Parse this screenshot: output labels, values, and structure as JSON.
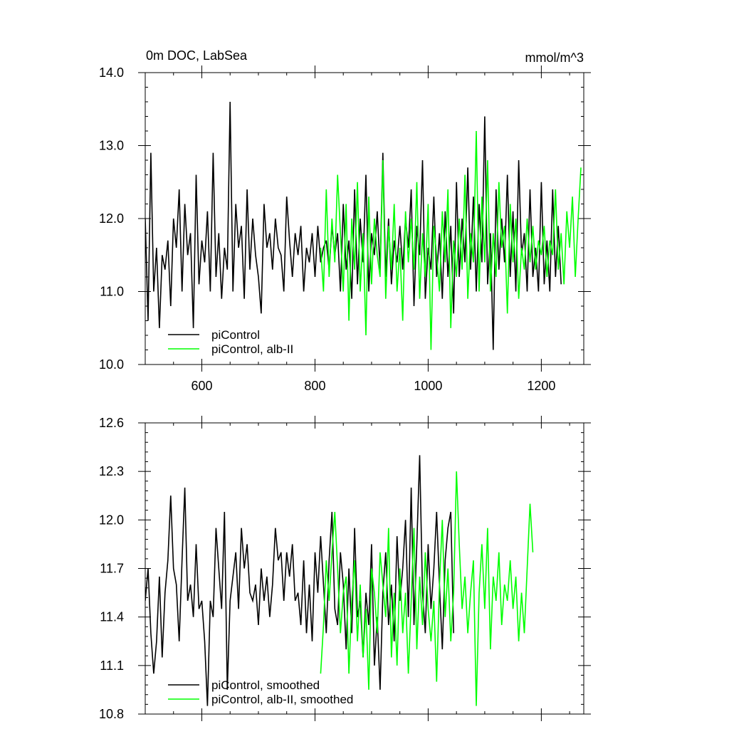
{
  "chart_data": [
    {
      "type": "line",
      "title": "0m DOC, LabSea",
      "units": "mmol/m^3",
      "xlim": [
        500,
        1275
      ],
      "ylim": [
        10.0,
        14.0
      ],
      "x_ticks": [
        600,
        800,
        1000,
        1200
      ],
      "x_tick_labels": [
        "600",
        "800",
        "1000",
        "1200"
      ],
      "y_ticks": [
        10.0,
        11.0,
        12.0,
        13.0,
        14.0
      ],
      "y_tick_labels": [
        "10.0",
        "11.0",
        "12.0",
        "13.0",
        "14.0"
      ],
      "grid": false,
      "legend_position": "bottom-left",
      "series": [
        {
          "name": "piControl",
          "color": "#000000",
          "x_start": 500,
          "x_step": 5,
          "values": [
            12.0,
            10.6,
            12.9,
            11.0,
            11.6,
            10.5,
            11.5,
            11.3,
            11.7,
            10.8,
            12.0,
            11.6,
            12.4,
            11.0,
            12.2,
            11.5,
            11.8,
            10.5,
            12.6,
            11.1,
            11.7,
            11.4,
            12.1,
            11.0,
            12.9,
            11.2,
            11.8,
            10.9,
            11.6,
            11.3,
            13.6,
            11.0,
            12.2,
            11.6,
            11.9,
            10.9,
            12.4,
            11.3,
            12.0,
            11.5,
            11.2,
            10.7,
            12.2,
            11.6,
            11.8,
            11.3,
            12.0,
            11.6,
            11.5,
            11.0,
            12.3,
            11.7,
            11.2,
            11.8,
            11.5,
            11.9,
            11.0,
            11.6,
            11.4,
            11.8,
            11.2,
            11.9,
            11.4,
            11.6,
            11.7,
            11.3,
            11.9,
            11.5,
            11.8,
            11.0,
            12.2,
            11.3,
            11.7,
            10.9,
            12.4,
            11.1,
            12.0,
            11.4,
            12.6,
            11.0,
            11.8,
            11.5,
            12.1,
            11.3,
            12.9,
            11.2,
            12.0,
            11.1,
            11.7,
            11.4,
            11.9,
            11.3,
            12.0,
            11.6,
            12.4,
            10.8,
            11.9,
            11.5,
            12.8,
            10.9,
            11.6,
            11.3,
            12.3,
            11.2,
            11.8,
            10.9,
            12.1,
            11.2,
            11.9,
            10.7,
            12.5,
            11.2,
            12.0,
            11.4,
            12.7,
            11.3,
            12.3,
            11.0,
            12.2,
            11.4,
            13.4,
            11.1,
            11.8,
            10.2,
            12.4,
            11.3,
            12.0,
            11.4,
            12.6,
            11.2,
            12.1,
            11.0,
            12.8,
            11.5,
            11.8,
            11.0,
            12.4,
            11.2,
            11.6,
            11.0,
            12.5,
            11.1,
            11.7,
            11.0,
            12.4,
            11.2,
            11.9,
            11.1
          ]
        },
        {
          "name": "piControl, alb-II",
          "color": "#00ff00",
          "x_start": 810,
          "x_step": 5,
          "values": [
            11.6,
            11.0,
            12.4,
            11.2,
            12.0,
            11.4,
            12.6,
            11.8,
            11.0,
            12.2,
            10.6,
            12.0,
            11.3,
            12.5,
            11.0,
            11.8,
            10.4,
            12.3,
            11.1,
            12.0,
            11.5,
            11.2,
            12.8,
            10.9,
            11.9,
            11.3,
            12.2,
            11.0,
            11.6,
            10.6,
            12.1,
            11.4,
            12.0,
            11.3,
            12.5,
            10.9,
            11.8,
            11.2,
            12.2,
            10.2,
            11.9,
            11.5,
            11.0,
            12.1,
            11.4,
            12.4,
            10.5,
            11.7,
            11.2,
            12.0,
            11.3,
            12.6,
            10.9,
            11.8,
            11.4,
            13.2,
            11.0,
            12.3,
            11.4,
            12.8,
            11.0,
            11.8,
            11.2,
            12.5,
            11.6,
            11.9,
            10.7,
            12.2,
            11.4,
            12.0,
            10.9,
            11.6,
            11.3,
            12.0,
            11.4,
            11.9,
            11.3,
            11.7,
            11.5,
            11.9,
            11.2,
            11.7,
            11.5,
            12.4,
            11.3,
            11.8,
            11.1,
            12.1,
            11.6,
            12.3,
            11.2,
            12.0,
            12.7
          ]
        }
      ]
    },
    {
      "type": "line",
      "xlim": [
        500,
        1275
      ],
      "ylim": [
        10.8,
        12.6
      ],
      "x_ticks": [
        600,
        800,
        1000,
        1200
      ],
      "y_ticks": [
        10.8,
        11.1,
        11.4,
        11.7,
        12.0,
        12.3,
        12.6
      ],
      "y_tick_labels": [
        "10.8",
        "11.1",
        "11.4",
        "11.7",
        "12.0",
        "12.3",
        "12.6"
      ],
      "grid": false,
      "legend_position": "bottom-left",
      "series": [
        {
          "name": "piControl, smoothed",
          "color": "#000000",
          "x_start": 500,
          "x_step": 5,
          "values": [
            11.5,
            11.7,
            11.3,
            11.05,
            11.25,
            11.65,
            11.15,
            11.55,
            11.75,
            12.15,
            11.7,
            11.6,
            11.25,
            11.75,
            12.2,
            11.5,
            11.6,
            11.4,
            11.85,
            11.45,
            11.5,
            11.25,
            10.85,
            11.5,
            11.4,
            11.95,
            11.7,
            11.45,
            12.05,
            10.95,
            11.5,
            11.65,
            11.8,
            11.45,
            11.95,
            11.7,
            11.85,
            11.55,
            11.5,
            11.6,
            11.35,
            11.7,
            11.5,
            11.65,
            11.4,
            11.6,
            11.95,
            11.75,
            11.8,
            11.5,
            11.8,
            11.65,
            11.85,
            11.5,
            11.55,
            11.35,
            11.75,
            11.3,
            11.6,
            11.25,
            11.8,
            11.55,
            11.9,
            11.6,
            11.3,
            11.75,
            12.05,
            11.45,
            11.35,
            11.8,
            11.6,
            11.2,
            11.7,
            11.3,
            11.95,
            11.4,
            11.5,
            11.15,
            11.55,
            11.35,
            11.85,
            11.1,
            11.4,
            10.95,
            11.55,
            11.8,
            11.35,
            11.6,
            11.25,
            11.9,
            11.5,
            11.7,
            12.0,
            11.4,
            12.2,
            11.35,
            11.85,
            12.4,
            11.55,
            11.3,
            11.85,
            11.45,
            11.7,
            12.05,
            11.6,
            11.2,
            11.75,
            11.95,
            12.05,
            11.3
          ]
        },
        {
          "name": "piControl, alb-II, smoothed",
          "color": "#00ff00",
          "x_start": 810,
          "x_step": 5,
          "values": [
            11.05,
            11.35,
            11.75,
            11.5,
            11.8,
            12.05,
            11.7,
            11.3,
            11.55,
            11.65,
            11.05,
            11.5,
            11.75,
            11.25,
            11.6,
            11.15,
            11.45,
            10.95,
            11.7,
            11.55,
            11.3,
            11.8,
            11.6,
            11.4,
            11.95,
            11.15,
            11.55,
            11.1,
            11.7,
            11.3,
            11.55,
            11.05,
            11.5,
            11.95,
            11.2,
            11.65,
            11.35,
            11.8,
            11.45,
            11.25,
            11.5,
            11.0,
            11.6,
            12.0,
            11.4,
            11.7,
            11.25,
            11.55,
            12.3,
            11.85,
            11.45,
            11.65,
            11.3,
            11.55,
            11.75,
            10.85,
            11.55,
            11.85,
            11.45,
            11.95,
            11.2,
            11.65,
            11.5,
            11.8,
            11.35,
            11.6,
            11.5,
            11.75,
            11.45,
            11.65,
            11.25,
            11.55,
            11.3,
            11.7,
            12.1,
            11.8
          ]
        }
      ]
    }
  ]
}
